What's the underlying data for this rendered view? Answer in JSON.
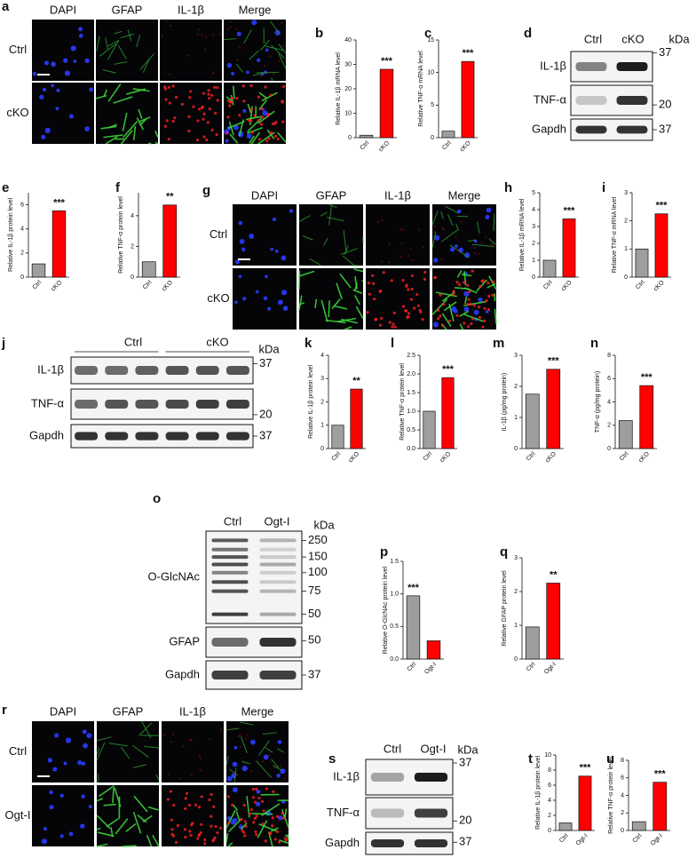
{
  "chart_data": [
    {
      "type": "bar",
      "panel": "b",
      "ylabel": "Relative IL-1β mRNA level",
      "categories": [
        "Ctrl",
        "cKO"
      ],
      "values": [
        1,
        28
      ],
      "colors": [
        "#9e9e9e",
        "#ff0000"
      ],
      "ylim": [
        0,
        40
      ],
      "yticks": [
        0,
        10,
        20,
        30,
        40
      ],
      "annotation": "***"
    },
    {
      "type": "bar",
      "panel": "c",
      "ylabel": "Relative TNF-α mRNA level",
      "categories": [
        "Ctrl",
        "cKO"
      ],
      "values": [
        1,
        11.7
      ],
      "colors": [
        "#9e9e9e",
        "#ff0000"
      ],
      "ylim": [
        0,
        15
      ],
      "yticks": [
        0,
        5,
        10,
        15
      ],
      "annotation": "***"
    },
    {
      "type": "bar",
      "panel": "e",
      "ylabel": "Relative IL-1β protein level",
      "categories": [
        "Ctrl",
        "cKO"
      ],
      "values": [
        1.1,
        5.5
      ],
      "colors": [
        "#9e9e9e",
        "#ff0000"
      ],
      "ylim": [
        0,
        7
      ],
      "yticks": [
        0,
        2,
        4,
        6
      ],
      "annotation": "***"
    },
    {
      "type": "bar",
      "panel": "f",
      "ylabel": "Relative TNF-α protein level",
      "categories": [
        "Ctrl",
        "cKO"
      ],
      "values": [
        1,
        4.7
      ],
      "colors": [
        "#9e9e9e",
        "#ff0000"
      ],
      "ylim": [
        0,
        5.5
      ],
      "yticks": [
        0,
        2,
        4
      ],
      "annotation": "**"
    },
    {
      "type": "bar",
      "panel": "h",
      "ylabel": "Relative IL-1β mRNA level",
      "categories": [
        "Ctrl",
        "cKO"
      ],
      "values": [
        1,
        3.45
      ],
      "colors": [
        "#9e9e9e",
        "#ff0000"
      ],
      "ylim": [
        0,
        5
      ],
      "yticks": [
        0,
        1,
        2,
        3,
        4,
        5
      ],
      "annotation": "***"
    },
    {
      "type": "bar",
      "panel": "i",
      "ylabel": "Relative TNF-α mRNA level",
      "categories": [
        "Ctrl",
        "cKO"
      ],
      "values": [
        1,
        2.25
      ],
      "colors": [
        "#9e9e9e",
        "#ff0000"
      ],
      "ylim": [
        0,
        3
      ],
      "yticks": [
        0,
        1,
        2,
        3
      ],
      "annotation": "***"
    },
    {
      "type": "bar",
      "panel": "k",
      "ylabel": "Relative IL-1β protein level",
      "categories": [
        "Ctrl",
        "cKO"
      ],
      "values": [
        1,
        2.55
      ],
      "colors": [
        "#9e9e9e",
        "#ff0000"
      ],
      "ylim": [
        0,
        4
      ],
      "yticks": [
        0,
        1,
        2,
        3,
        4
      ],
      "annotation": "**"
    },
    {
      "type": "bar",
      "panel": "l",
      "ylabel": "Relative TNF-α protein level",
      "categories": [
        "Ctrl",
        "cKO"
      ],
      "values": [
        1,
        1.9
      ],
      "colors": [
        "#9e9e9e",
        "#ff0000"
      ],
      "ylim": [
        0,
        2.5
      ],
      "yticks": [
        {
          "value": 0,
          "label": "0.0"
        },
        0.5,
        {
          "value": 1,
          "label": "1.0"
        },
        1.5,
        {
          "value": 2,
          "label": "2.0"
        },
        2.5
      ],
      "annotation": "***"
    },
    {
      "type": "bar",
      "panel": "m",
      "ylabel": "IL-1β (pg/mg protein)",
      "categories": [
        "Ctrl",
        "cKO"
      ],
      "values": [
        1.75,
        2.55
      ],
      "colors": [
        "#9e9e9e",
        "#ff0000"
      ],
      "ylim": [
        0,
        3
      ],
      "yticks": [
        0,
        1,
        2,
        3
      ],
      "annotation": "***"
    },
    {
      "type": "bar",
      "panel": "n",
      "ylabel": "TNF-α (pg/mg protein)",
      "categories": [
        "Ctrl",
        "cKO"
      ],
      "values": [
        2.4,
        5.4
      ],
      "colors": [
        "#9e9e9e",
        "#ff0000"
      ],
      "ylim": [
        0,
        8
      ],
      "yticks": [
        0,
        2,
        4,
        6,
        8
      ],
      "annotation": "***"
    },
    {
      "type": "bar",
      "panel": "p",
      "ylabel": "Relative O-GlcNAc protein level",
      "categories": [
        "Ctrl",
        "Ogt-I"
      ],
      "values": [
        0.97,
        0.28
      ],
      "colors": [
        "#9e9e9e",
        "#ff0000"
      ],
      "ylim": [
        0,
        1.5
      ],
      "yticks": [
        {
          "value": 0,
          "label": "0.0"
        },
        0.5,
        {
          "value": 1,
          "label": "1.0"
        },
        1.5
      ],
      "annotation": "***"
    },
    {
      "type": "bar",
      "panel": "q",
      "ylabel": "Relative GFAP protein level",
      "categories": [
        "Ctrl",
        "Ogt-I"
      ],
      "values": [
        0.95,
        2.25
      ],
      "colors": [
        "#9e9e9e",
        "#ff0000"
      ],
      "ylim": [
        0,
        3
      ],
      "yticks": [
        0,
        1,
        2,
        3
      ],
      "annotation": "**"
    },
    {
      "type": "bar",
      "panel": "t",
      "ylabel": "Relative IL-1β protein level",
      "categories": [
        "Ctrl",
        "Ogt-I"
      ],
      "values": [
        1,
        7.2
      ],
      "colors": [
        "#9e9e9e",
        "#ff0000"
      ],
      "ylim": [
        0,
        10
      ],
      "yticks": [
        0,
        2,
        4,
        6,
        8,
        10
      ],
      "annotation": "***"
    },
    {
      "type": "bar",
      "panel": "u",
      "ylabel": "Relative TNF-α protein level",
      "categories": [
        "Ctrl",
        "Ogt-I"
      ],
      "values": [
        1,
        5.5
      ],
      "colors": [
        "#9e9e9e",
        "#ff0000"
      ],
      "ylim": [
        0,
        8
      ],
      "yticks": [
        0,
        2,
        4,
        6,
        8
      ],
      "annotation": "***"
    }
  ],
  "micrographs": [
    {
      "panel": "a",
      "columns": [
        "DAPI",
        "GFAP",
        "IL-1β",
        "Merge"
      ],
      "rows": [
        "Ctrl",
        "cKO"
      ]
    },
    {
      "panel": "g",
      "columns": [
        "DAPI",
        "GFAP",
        "IL-1β",
        "Merge"
      ],
      "rows": [
        "Ctrl",
        "cKO"
      ]
    },
    {
      "panel": "r",
      "columns": [
        "DAPI",
        "GFAP",
        "IL-1β",
        "Merge"
      ],
      "rows": [
        "Ctrl",
        "Ogt-I"
      ]
    }
  ],
  "blots": [
    {
      "panel": "d",
      "lanes": [
        "Ctrl",
        "cKO"
      ],
      "unit": "kDa",
      "rows": [
        {
          "label": "IL-1β",
          "markers": [
            37
          ]
        },
        {
          "label": "TNF-α",
          "markers": [
            20
          ]
        },
        {
          "label": "Gapdh",
          "markers": [
            37
          ]
        }
      ]
    },
    {
      "panel": "j",
      "lanes": [
        "Ctrl",
        "cKO"
      ],
      "unit": "kDa",
      "rows": [
        {
          "label": "IL-1β",
          "markers": [
            37
          ]
        },
        {
          "label": "TNF-α",
          "markers": [
            20
          ]
        },
        {
          "label": "Gapdh",
          "markers": [
            37
          ]
        }
      ]
    },
    {
      "panel": "o",
      "lanes": [
        "Ctrl",
        "Ogt-I"
      ],
      "unit": "kDa",
      "rows": [
        {
          "label": "O-GlcNAc",
          "markers": [
            250,
            150,
            100,
            75,
            50
          ]
        },
        {
          "label": "GFAP",
          "markers": [
            50
          ]
        },
        {
          "label": "Gapdh",
          "markers": [
            37
          ]
        }
      ]
    },
    {
      "panel": "s",
      "lanes": [
        "Ctrl",
        "Ogt-I"
      ],
      "unit": "kDa",
      "rows": [
        {
          "label": "IL-1β",
          "markers": [
            37
          ]
        },
        {
          "label": "TNF-α",
          "markers": [
            20
          ]
        },
        {
          "label": "Gapdh",
          "markers": [
            37
          ]
        }
      ]
    }
  ]
}
